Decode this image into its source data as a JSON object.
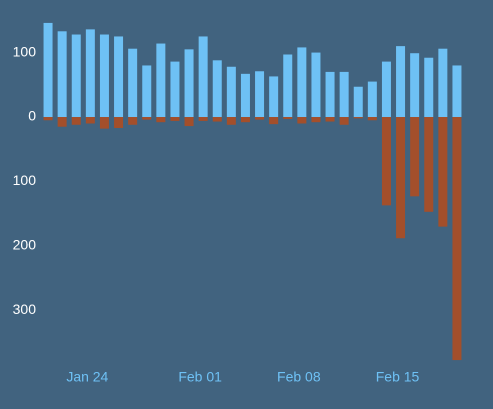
{
  "chart_data": {
    "type": "diverging-bar",
    "categories": [
      null,
      null,
      null,
      "Jan 24",
      null,
      null,
      null,
      null,
      null,
      null,
      null,
      "Feb 01",
      null,
      null,
      null,
      null,
      null,
      null,
      "Feb 08",
      null,
      null,
      null,
      null,
      null,
      null,
      "Feb 15",
      null,
      null,
      null,
      null
    ],
    "series": [
      {
        "color": "#6ec1f5",
        "values": [
          146,
          133,
          128,
          136,
          128,
          125,
          106,
          80,
          114,
          86,
          105,
          125,
          88,
          78,
          67,
          71,
          63,
          97,
          108,
          100,
          70,
          70,
          47,
          55,
          86,
          110,
          99,
          92,
          106,
          80
        ]
      },
      {
        "color": "#a34f2b",
        "values": [
          -5,
          -15,
          -12,
          -10,
          -18,
          -17,
          -12,
          -4,
          -8,
          -6,
          -14,
          -6,
          -7,
          -12,
          -8,
          -4,
          -11,
          -3,
          -10,
          -8,
          -7,
          -12,
          -2,
          -5,
          -137,
          -188,
          -123,
          -147,
          -170,
          -377
        ]
      }
    ],
    "ylim": [
      -380,
      180
    ],
    "yticks": [
      {
        "value": -300,
        "label": "300"
      },
      {
        "value": -200,
        "label": "200"
      },
      {
        "value": -100,
        "label": "100"
      },
      0,
      100
    ],
    "grid": false
  }
}
